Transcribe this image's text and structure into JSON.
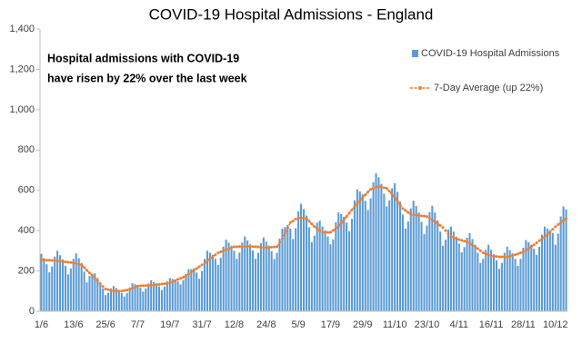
{
  "chart_data": {
    "type": "bar",
    "title": "COVID-19 Hospital Admissions - England",
    "annotation": [
      "Hospital admissions with COVID-19",
      "have risen by 22% over the last week"
    ],
    "legend": "top-right",
    "grid": false,
    "ylim": [
      0,
      1400
    ],
    "yticks": [
      0,
      200,
      400,
      600,
      800,
      {
        "value": 1000,
        "label": "1,000"
      },
      {
        "value": 1200,
        "label": "1,200"
      },
      {
        "value": 1400,
        "label": "1,400"
      }
    ],
    "categories": [
      "1/6",
      null,
      null,
      null,
      null,
      null,
      null,
      null,
      null,
      null,
      null,
      null,
      "13/6",
      null,
      null,
      null,
      null,
      null,
      null,
      null,
      null,
      null,
      null,
      null,
      "25/6",
      null,
      null,
      null,
      null,
      null,
      null,
      null,
      null,
      null,
      null,
      null,
      "7/7",
      null,
      null,
      null,
      null,
      null,
      null,
      null,
      null,
      null,
      null,
      null,
      "19/7",
      null,
      null,
      null,
      null,
      null,
      null,
      null,
      null,
      null,
      null,
      null,
      "31/7",
      null,
      null,
      null,
      null,
      null,
      null,
      null,
      null,
      null,
      null,
      null,
      "12/8",
      null,
      null,
      null,
      null,
      null,
      null,
      null,
      null,
      null,
      null,
      null,
      "24/8",
      null,
      null,
      null,
      null,
      null,
      null,
      null,
      null,
      null,
      null,
      null,
      "5/9",
      null,
      null,
      null,
      null,
      null,
      null,
      null,
      null,
      null,
      null,
      null,
      "17/9",
      null,
      null,
      null,
      null,
      null,
      null,
      null,
      null,
      null,
      null,
      null,
      "29/9",
      null,
      null,
      null,
      null,
      null,
      null,
      null,
      null,
      null,
      null,
      null,
      "11/10",
      null,
      null,
      null,
      null,
      null,
      null,
      null,
      null,
      null,
      null,
      null,
      "23/10",
      null,
      null,
      null,
      null,
      null,
      null,
      null,
      null,
      null,
      null,
      null,
      "4/11",
      null,
      null,
      null,
      null,
      null,
      null,
      null,
      null,
      null,
      null,
      null,
      "16/11",
      null,
      null,
      null,
      null,
      null,
      null,
      null,
      null,
      null,
      null,
      null,
      "28/11",
      null,
      null,
      null,
      null,
      null,
      null,
      null,
      null,
      null,
      null,
      null,
      "10/12",
      null,
      null,
      null,
      null
    ],
    "series": [
      {
        "name": "COVID-19 Hospital Admissions",
        "type": "bar",
        "color": "#5b9bd5",
        "values": [
          285,
          264,
          233,
          193,
          222,
          271,
          300,
          278,
          257,
          225,
          183,
          212,
          260,
          287,
          263,
          240,
          197,
          143,
          175,
          187,
          188,
          165,
          142,
          113,
          80,
          92,
          113,
          125,
          115,
          105,
          90,
          73,
          90,
          118,
          139,
          134,
          130,
          116,
          97,
          113,
          138,
          154,
          145,
          137,
          123,
          105,
          122,
          148,
          165,
          161,
          157,
          148,
          133,
          154,
          185,
          209,
          209,
          213,
          192,
          161,
          200,
          260,
          300,
          290,
          280,
          260,
          230,
          265,
          320,
          355,
          340,
          325,
          300,
          260,
          291,
          341,
          371,
          351,
          332,
          301,
          260,
          289,
          337,
          366,
          345,
          326,
          298,
          259,
          290,
          360,
          410,
          417,
          428,
          410,
          358,
          412,
          495,
          533,
          507,
          475,
          417,
          343,
          375,
          440,
          450,
          420,
          401,
          371,
          332,
          356,
          441,
          490,
          482,
          468,
          440,
          397,
          458,
          550,
          605,
          595,
          580,
          548,
          502,
          560,
          640,
          685,
          665,
          632,
          583,
          520,
          550,
          610,
          635,
          592,
          543,
          480,
          410,
          445,
          510,
          548,
          522,
          490,
          443,
          382,
          425,
          492,
          523,
          490,
          450,
          395,
          325,
          355,
          405,
          420,
          395,
          370,
          335,
          292,
          318,
          365,
          387,
          358,
          330,
          290,
          240,
          260,
          305,
          330,
          305,
          283,
          252,
          210,
          240,
          290,
          320,
          303,
          287,
          260,
          225,
          260,
          315,
          353,
          342,
          330,
          310,
          280,
          320,
          380,
          420,
          410,
          403,
          387,
          330,
          385,
          470,
          520,
          505
        ]
      },
      {
        "name": "7-Day Average (up 22%)",
        "type": "line",
        "color": "#ed7d31",
        "values": [
          255,
          254,
          253,
          253,
          252,
          251,
          250,
          248,
          247,
          245,
          243,
          242,
          240,
          237,
          233,
          230,
          217,
          203,
          190,
          177,
          163,
          150,
          137,
          123,
          110,
          107,
          103,
          100,
          100,
          100,
          100,
          103,
          105,
          108,
          114,
          119,
          125,
          126,
          127,
          128,
          128,
          129,
          130,
          132,
          133,
          135,
          137,
          138,
          140,
          146,
          152,
          158,
          163,
          169,
          175,
          184,
          194,
          203,
          212,
          221,
          230,
          240,
          250,
          260,
          270,
          280,
          290,
          295,
          300,
          305,
          310,
          315,
          320,
          320,
          321,
          321,
          321,
          322,
          322,
          321,
          320,
          319,
          317,
          316,
          315,
          316,
          318,
          319,
          320,
          340,
          360,
          387,
          413,
          440,
          448,
          457,
          465,
          463,
          462,
          460,
          447,
          433,
          420,
          410,
          400,
          390,
          391,
          391,
          392,
          401,
          411,
          420,
          437,
          453,
          470,
          487,
          503,
          520,
          535,
          550,
          565,
          578,
          592,
          605,
          610,
          615,
          620,
          617,
          613,
          610,
          595,
          580,
          565,
          547,
          528,
          510,
          500,
          490,
          480,
          478,
          477,
          475,
          473,
          472,
          470,
          462,
          453,
          445,
          435,
          425,
          415,
          400,
          385,
          370,
          365,
          360,
          355,
          352,
          348,
          345,
          337,
          328,
          320,
          310,
          300,
          290,
          285,
          280,
          275,
          273,
          272,
          270,
          270,
          270,
          270,
          273,
          277,
          280,
          285,
          290,
          295,
          303,
          312,
          320,
          330,
          340,
          350,
          360,
          370,
          380,
          393,
          407,
          420,
          430,
          440,
          450,
          460
        ]
      }
    ]
  }
}
